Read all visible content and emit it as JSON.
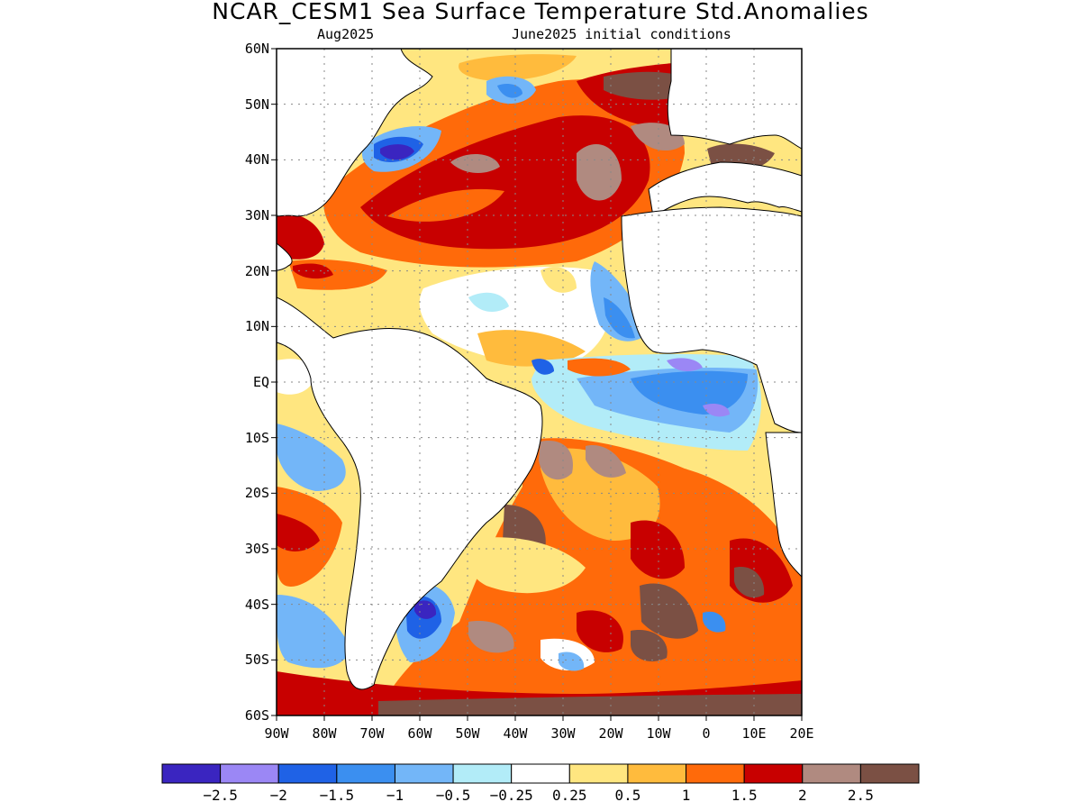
{
  "title": "NCAR_CESM1 Sea Surface Temperature Std.Anomalies",
  "subtitle_left": "Aug2025",
  "subtitle_right": "June2025 initial conditions",
  "map": {
    "lat_range": [
      -60,
      60
    ],
    "lon_range": [
      -90,
      20
    ],
    "lat_ticks": [
      {
        "value": 60,
        "label": "60N"
      },
      {
        "value": 50,
        "label": "50N"
      },
      {
        "value": 40,
        "label": "40N"
      },
      {
        "value": 30,
        "label": "30N"
      },
      {
        "value": 20,
        "label": "20N"
      },
      {
        "value": 10,
        "label": "10N"
      },
      {
        "value": 0,
        "label": "EQ"
      },
      {
        "value": -10,
        "label": "10S"
      },
      {
        "value": -20,
        "label": "20S"
      },
      {
        "value": -30,
        "label": "30S"
      },
      {
        "value": -40,
        "label": "40S"
      },
      {
        "value": -50,
        "label": "50S"
      },
      {
        "value": -60,
        "label": "60S"
      }
    ],
    "lon_ticks": [
      {
        "value": -90,
        "label": "90W"
      },
      {
        "value": -80,
        "label": "80W"
      },
      {
        "value": -70,
        "label": "70W"
      },
      {
        "value": -60,
        "label": "60W"
      },
      {
        "value": -50,
        "label": "50W"
      },
      {
        "value": -40,
        "label": "40W"
      },
      {
        "value": -30,
        "label": "30W"
      },
      {
        "value": -20,
        "label": "20W"
      },
      {
        "value": -10,
        "label": "10W"
      },
      {
        "value": 0,
        "label": "0"
      },
      {
        "value": 10,
        "label": "10E"
      },
      {
        "value": 20,
        "label": "20E"
      }
    ],
    "grid": true
  },
  "colorbar": {
    "colors": [
      "#3a25c0",
      "#9b87f5",
      "#1f62e6",
      "#3b8ff0",
      "#73b6f8",
      "#b2ecf8",
      "#ffffff",
      "#ffe680",
      "#ffbb3d",
      "#ff6a0a",
      "#c80000",
      "#b08a80",
      "#7b5044"
    ],
    "labels": [
      "−2.5",
      "−2",
      "−1.5",
      "−1",
      "−0.5",
      "−0.25",
      "0.25",
      "0.5",
      "1",
      "1.5",
      "2",
      "2.5"
    ]
  }
}
